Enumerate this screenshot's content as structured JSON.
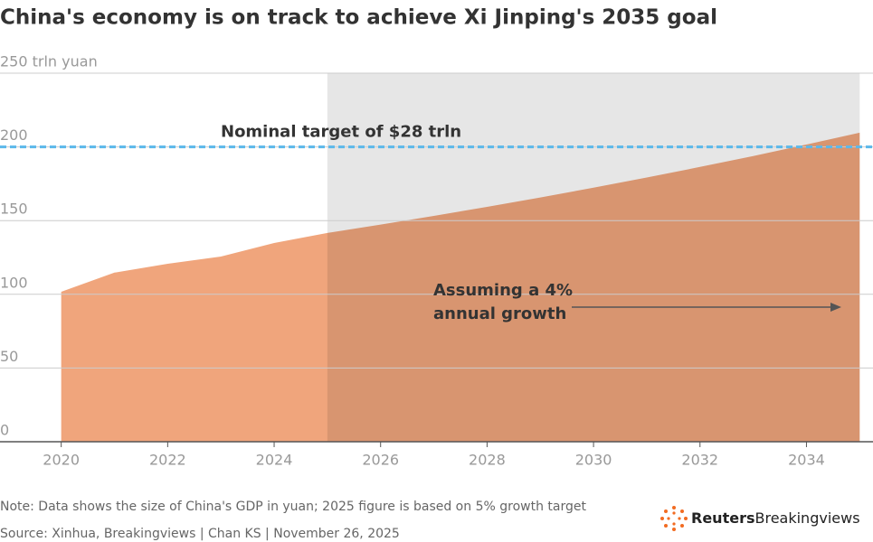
{
  "chart_data": {
    "type": "area",
    "title": "China's economy is on track to achieve Xi Jinping's 2035 goal",
    "x": [
      2020,
      2021,
      2022,
      2023,
      2024,
      2025,
      2026,
      2027,
      2028,
      2029,
      2030,
      2031,
      2032,
      2033,
      2034,
      2035
    ],
    "values": [
      101.7,
      114.7,
      120.7,
      125.6,
      134.8,
      141.6,
      147.3,
      153.2,
      159.3,
      165.7,
      172.3,
      179.2,
      186.4,
      193.8,
      201.6,
      209.6
    ],
    "color": "#f0a57c",
    "xlim": [
      2018.85,
      2035.25
    ],
    "xticks": [
      2020,
      2022,
      2024,
      2026,
      2028,
      2030,
      2032,
      2034
    ],
    "ylim": [
      0,
      250
    ],
    "yticks": [
      0,
      50,
      100,
      150,
      200,
      {
        "value": 250,
        "label": "250 trln yuan"
      }
    ],
    "grid": true,
    "shade_from": 2025,
    "shade_color": "#e6e6e6",
    "target": {
      "value": 200,
      "label": "Nominal target of $28 trln",
      "color": "#5bb8ea"
    },
    "projection_label": [
      "Assuming a 4%",
      "annual growth"
    ],
    "note": "Note: Data shows the size of China's GDP in yuan; 2025 figure is based on 5% growth target",
    "source": "Source: Xinhua, Breakingviews | Chan KS | November 26, 2025",
    "brand": [
      "Reuters",
      "Breakingviews"
    ]
  }
}
